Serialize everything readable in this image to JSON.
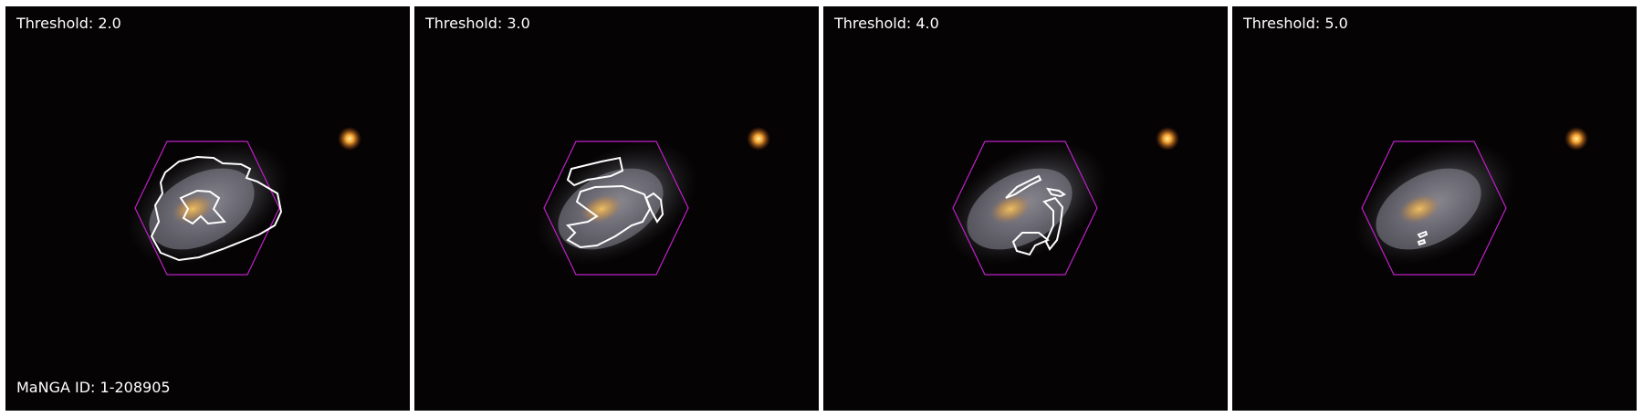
{
  "manga_id_label": "MaNGA ID: 1-208905",
  "panels": [
    {
      "threshold_label": "Threshold: 2.0"
    },
    {
      "threshold_label": "Threshold: 3.0"
    },
    {
      "threshold_label": "Threshold: 4.0"
    },
    {
      "threshold_label": "Threshold: 5.0"
    }
  ],
  "colors": {
    "sky_background": "#050303",
    "hexagon": "#c020c8",
    "contour": "#ffffff",
    "galaxy_core": "#d8a050",
    "galaxy_disk": "#9a98a2",
    "star": "#f0a030"
  }
}
